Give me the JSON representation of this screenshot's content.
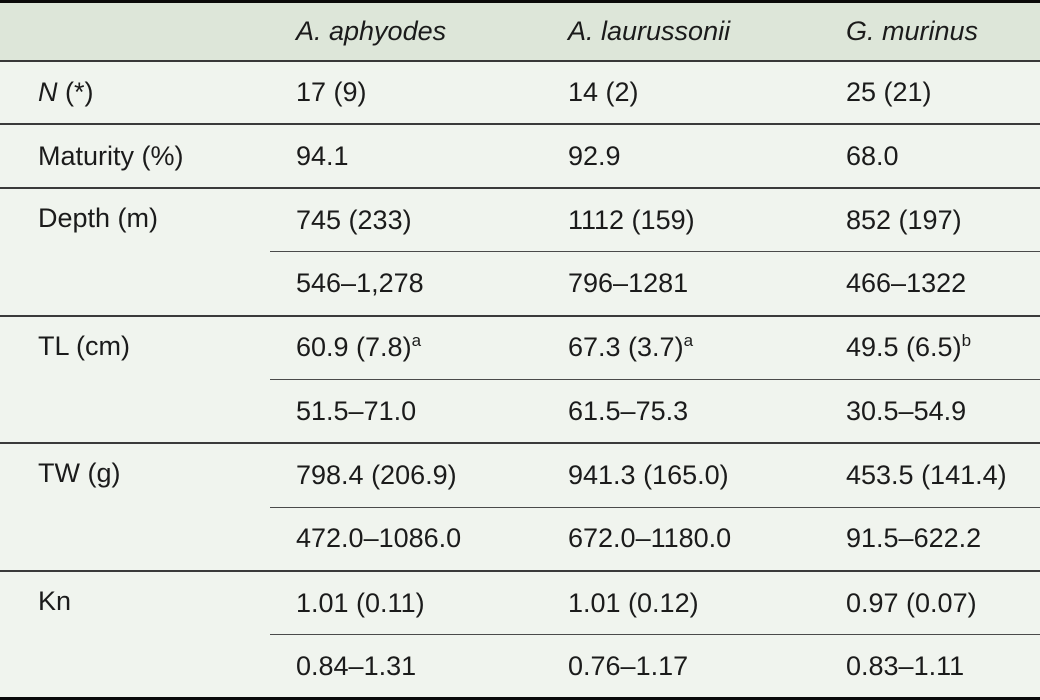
{
  "table": {
    "header": {
      "corner": "",
      "columns": [
        "A. aphyodes",
        "A. laurussonii",
        "G. murinus"
      ]
    },
    "groups": [
      {
        "label_italic": "N",
        "label_rest": " (*)",
        "rows": [
          {
            "cells": [
              {
                "t": "17 (9)",
                "s": ""
              },
              {
                "t": "14 (2)",
                "s": ""
              },
              {
                "t": "25 (21)",
                "s": ""
              }
            ]
          }
        ]
      },
      {
        "label": "Maturity (%)",
        "rows": [
          {
            "cells": [
              {
                "t": "94.1",
                "s": ""
              },
              {
                "t": "92.9",
                "s": ""
              },
              {
                "t": "68.0",
                "s": ""
              }
            ]
          }
        ]
      },
      {
        "label": "Depth (m)",
        "rows": [
          {
            "cells": [
              {
                "t": "745 (233)",
                "s": ""
              },
              {
                "t": "1112 (159)",
                "s": ""
              },
              {
                "t": "852 (197)",
                "s": ""
              }
            ]
          },
          {
            "cells": [
              {
                "t": "546–1,278",
                "s": ""
              },
              {
                "t": "796–1281",
                "s": ""
              },
              {
                "t": "466–1322",
                "s": ""
              }
            ]
          }
        ]
      },
      {
        "label": "TL (cm)",
        "rows": [
          {
            "cells": [
              {
                "t": "60.9 (7.8)",
                "s": "a"
              },
              {
                "t": "67.3 (3.7)",
                "s": "a"
              },
              {
                "t": "49.5 (6.5)",
                "s": "b"
              }
            ]
          },
          {
            "cells": [
              {
                "t": "51.5–71.0",
                "s": ""
              },
              {
                "t": "61.5–75.3",
                "s": ""
              },
              {
                "t": "30.5–54.9",
                "s": ""
              }
            ]
          }
        ]
      },
      {
        "label": "TW (g)",
        "rows": [
          {
            "cells": [
              {
                "t": "798.4 (206.9)",
                "s": ""
              },
              {
                "t": "941.3 (165.0)",
                "s": ""
              },
              {
                "t": "453.5 (141.4)",
                "s": ""
              }
            ]
          },
          {
            "cells": [
              {
                "t": "472.0–1086.0",
                "s": ""
              },
              {
                "t": "672.0–1180.0",
                "s": ""
              },
              {
                "t": "91.5–622.2",
                "s": ""
              }
            ]
          }
        ]
      },
      {
        "label": "Kn",
        "rows": [
          {
            "cells": [
              {
                "t": "1.01 (0.11)",
                "s": ""
              },
              {
                "t": "1.01 (0.12)",
                "s": ""
              },
              {
                "t": "0.97 (0.07)",
                "s": ""
              }
            ]
          },
          {
            "cells": [
              {
                "t": "0.84–1.31",
                "s": ""
              },
              {
                "t": "0.76–1.17",
                "s": ""
              },
              {
                "t": "0.83–1.11",
                "s": ""
              }
            ]
          }
        ]
      }
    ],
    "colors": {
      "header_bg": "#dde6d9",
      "body_bg": "#f0f4ee",
      "rule_dark": "#0a0a0a",
      "rule_mid": "#3a3a3a",
      "text": "#1b1b1b"
    }
  }
}
